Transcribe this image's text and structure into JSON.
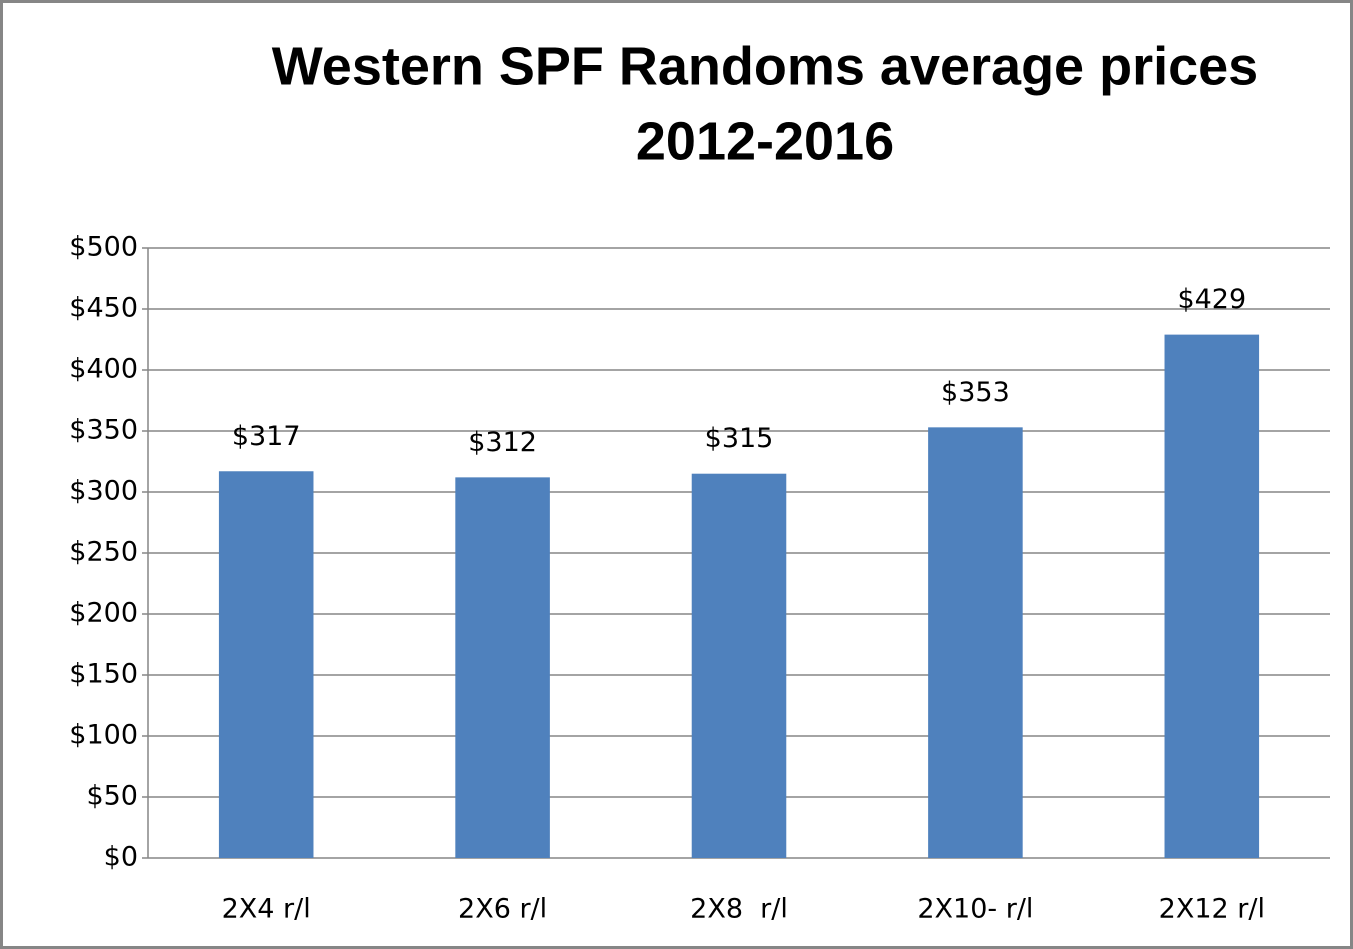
{
  "chart_data": {
    "type": "bar",
    "title": [
      "Western SPF Randoms average prices",
      "2012-2016"
    ],
    "categories": [
      "2X4 r/l",
      "2X6 r/l",
      "2X8  r/l",
      "2X10- r/l",
      "2X12 r/l"
    ],
    "values": [
      317,
      312,
      315,
      353,
      429
    ],
    "value_labels": [
      "$317",
      "$312",
      "$315",
      "$353",
      "$429"
    ],
    "color": "#4f81bd",
    "ylim": [
      0,
      500
    ],
    "yticks": [
      {
        "value": 0,
        "label": "$0"
      },
      {
        "value": 50,
        "label": "$50"
      },
      {
        "value": 100,
        "label": "$100"
      },
      {
        "value": 150,
        "label": "$150"
      },
      {
        "value": 200,
        "label": "$200"
      },
      {
        "value": 250,
        "label": "$250"
      },
      {
        "value": 300,
        "label": "$300"
      },
      {
        "value": 350,
        "label": "$350"
      },
      {
        "value": 400,
        "label": "$400"
      },
      {
        "value": 450,
        "label": "$450"
      },
      {
        "value": 500,
        "label": "$500"
      }
    ],
    "grid": true
  }
}
